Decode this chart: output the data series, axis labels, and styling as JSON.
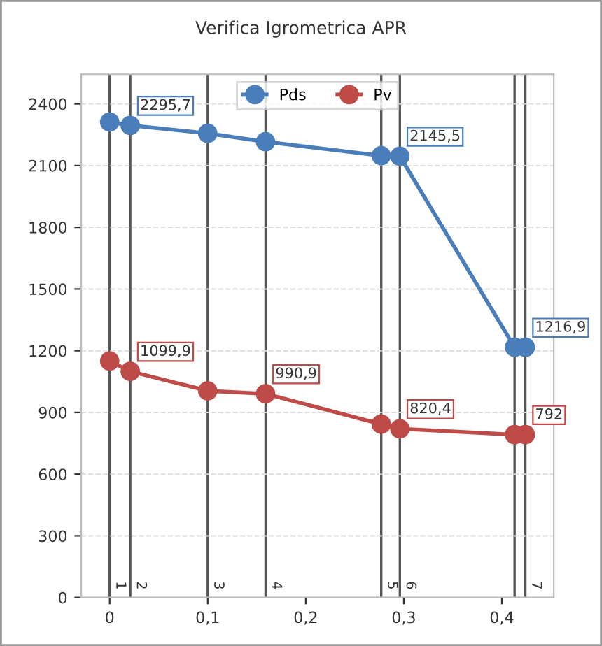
{
  "chart_data": {
    "type": "line",
    "title": "Verifica Igrometrica APR",
    "x": [
      0,
      0.021,
      0.1,
      0.159,
      0.277,
      0.296,
      0.413,
      0.424
    ],
    "series": [
      {
        "name": "Pds",
        "color": "#4a7ebb",
        "values": [
          2312,
          2295.7,
          2257,
          2216,
          2148,
          2145.5,
          1217,
          1216.9
        ],
        "value_labels": [
          null,
          "2295,7",
          null,
          null,
          null,
          "2145,5",
          null,
          "1216,9"
        ]
      },
      {
        "name": "Pv",
        "color": "#be4b48",
        "values": [
          1150,
          1099.9,
          1005,
          990.9,
          843,
          820.4,
          792,
          792
        ],
        "value_labels": [
          null,
          "1099,9",
          null,
          "990,9",
          null,
          "820,4",
          null,
          "792"
        ]
      }
    ],
    "xlim": [
      -0.029,
      0.453
    ],
    "ylim": [
      0,
      2544
    ],
    "xticks": [
      0,
      {
        "value": 0.1,
        "label": "0,1"
      },
      {
        "value": 0.2,
        "label": "0,2"
      },
      {
        "value": 0.3,
        "label": "0,3"
      },
      {
        "value": 0.4,
        "label": "0,4"
      }
    ],
    "yticks": [
      0,
      300,
      600,
      900,
      1200,
      1500,
      1800,
      2100,
      2400
    ],
    "ref_lines": [
      {
        "axis": "x",
        "value": 0
      },
      {
        "axis": "x",
        "value": 0.021
      },
      {
        "axis": "x",
        "value": 0.1
      },
      {
        "axis": "x",
        "value": 0.159
      },
      {
        "axis": "x",
        "value": 0.277
      },
      {
        "axis": "x",
        "value": 0.296
      },
      {
        "axis": "x",
        "value": 0.413
      },
      {
        "axis": "x",
        "value": 0.424
      }
    ],
    "annotations": [
      {
        "text": "1",
        "x": 0,
        "y": 0
      },
      {
        "text": "2",
        "x": 0.021,
        "y": 0
      },
      {
        "text": "3",
        "x": 0.1,
        "y": 0
      },
      {
        "text": "4",
        "x": 0.159,
        "y": 0
      },
      {
        "text": "5",
        "x": 0.277,
        "y": 0
      },
      {
        "text": "6",
        "x": 0.296,
        "y": 0
      },
      {
        "text": "7",
        "x": 0.424,
        "y": 0
      }
    ],
    "grid": "y",
    "legend": "top",
    "marker": "circle",
    "line_style": "solid"
  }
}
